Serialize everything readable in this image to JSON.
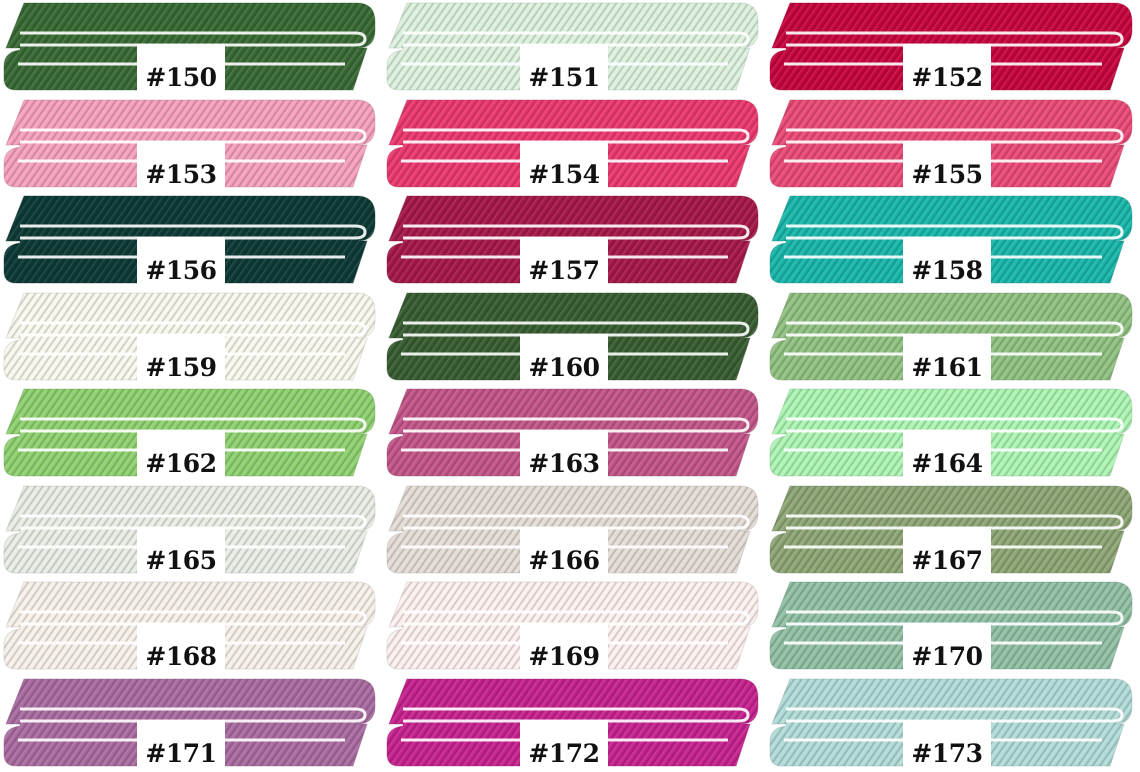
{
  "swatches": [
    {
      "label": "#150",
      "color": "#3a6b36"
    },
    {
      "label": "#151",
      "color": "#ddf2de"
    },
    {
      "label": "#152",
      "color": "#c7073f"
    },
    {
      "label": "#153",
      "color": "#f6a2bd"
    },
    {
      "label": "#154",
      "color": "#ec3a70"
    },
    {
      "label": "#155",
      "color": "#eb4c78"
    },
    {
      "label": "#156",
      "color": "#0f3b37"
    },
    {
      "label": "#157",
      "color": "#a61a4b"
    },
    {
      "label": "#158",
      "color": "#1bb7ab"
    },
    {
      "label": "#159",
      "color": "#f9f8ee"
    },
    {
      "label": "#160",
      "color": "#3a5e34"
    },
    {
      "label": "#161",
      "color": "#92c283"
    },
    {
      "label": "#162",
      "color": "#8fd271"
    },
    {
      "label": "#163",
      "color": "#c3578a"
    },
    {
      "label": "#164",
      "color": "#aef5b4"
    },
    {
      "label": "#165",
      "color": "#e8eee5"
    },
    {
      "label": "#166",
      "color": "#e4ddd6"
    },
    {
      "label": "#167",
      "color": "#8fa777"
    },
    {
      "label": "#168",
      "color": "#f7f1ea"
    },
    {
      "label": "#169",
      "color": "#fdf1f0"
    },
    {
      "label": "#170",
      "color": "#92c1a5"
    },
    {
      "label": "#171",
      "color": "#aa6da2"
    },
    {
      "label": "#172",
      "color": "#c7248f"
    },
    {
      "label": "#173",
      "color": "#b2dcd8"
    }
  ]
}
